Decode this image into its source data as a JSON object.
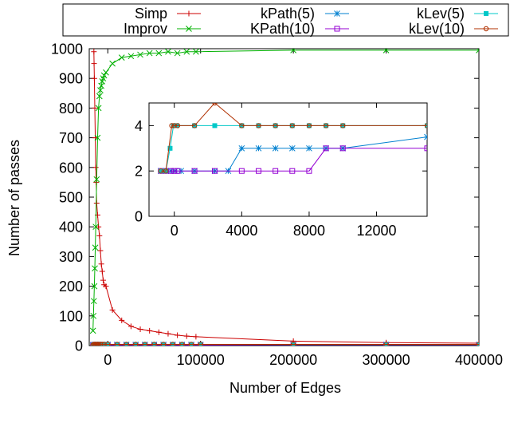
{
  "chart_data": [
    {
      "type": "line",
      "xlabel": "Number of Edges",
      "ylabel": "Number of passes",
      "xlim": [
        -20000,
        400000
      ],
      "ylim": [
        0,
        1000
      ],
      "x_ticks": [
        0,
        100000,
        200000,
        300000,
        400000
      ],
      "x_tick_labels": [
        "0",
        "100000",
        "200000",
        "300000",
        "400000"
      ],
      "y_ticks": [
        0,
        100,
        200,
        300,
        400,
        500,
        600,
        700,
        800,
        900,
        1000
      ],
      "y_tick_labels": [
        "0",
        "100",
        "200",
        "300",
        "400",
        "500",
        "600",
        "700",
        "800",
        "900",
        "1000"
      ],
      "legend_position": "top, outside plot",
      "series": [
        {
          "name": "Simp",
          "color": "#cc0000",
          "marker": "plus",
          "x": [
            -15000,
            -14800,
            -14500,
            -14000,
            -13500,
            -13000,
            -12500,
            -12000,
            -11000,
            -10000,
            -9000,
            -8000,
            -7000,
            -6000,
            -5000,
            -4000,
            -2000,
            5000,
            15000,
            25000,
            35000,
            45000,
            55000,
            65000,
            75000,
            85000,
            95000,
            200000,
            300000,
            400000
          ],
          "y": [
            990,
            950,
            900,
            800,
            700,
            600,
            550,
            480,
            440,
            400,
            370,
            320,
            275,
            250,
            220,
            205,
            200,
            120,
            85,
            65,
            55,
            50,
            45,
            40,
            35,
            32,
            30,
            15,
            10,
            8
          ]
        },
        {
          "name": "Improv",
          "color": "#00b000",
          "marker": "cross",
          "x": [
            -16000,
            -15500,
            -15000,
            -14500,
            -14000,
            -13500,
            -13000,
            -12000,
            -11000,
            -10000,
            -9000,
            -8000,
            -7000,
            -6000,
            -5000,
            -4000,
            -2000,
            5000,
            15000,
            25000,
            35000,
            45000,
            55000,
            65000,
            75000,
            85000,
            95000,
            200000,
            300000,
            400000
          ],
          "y": [
            50,
            100,
            150,
            200,
            260,
            330,
            400,
            560,
            700,
            800,
            840,
            860,
            875,
            890,
            900,
            910,
            920,
            950,
            970,
            975,
            980,
            985,
            985,
            990,
            985,
            990,
            990,
            995,
            995,
            995
          ]
        },
        {
          "name": "kPath(5)",
          "color": "#0080d0",
          "marker": "asterisk",
          "x": [
            -16000,
            -15000,
            -14000,
            -13000,
            -12000,
            -11000,
            -10000,
            -8000,
            -6000,
            -4000,
            0,
            10000,
            20000,
            30000,
            40000,
            50000,
            60000,
            70000,
            80000,
            90000,
            100000,
            200000,
            300000,
            400000
          ],
          "y": [
            2,
            2,
            3,
            3,
            3,
            3,
            3,
            3,
            3,
            3,
            3,
            3,
            3,
            3,
            3,
            3,
            3,
            3,
            3,
            3,
            3,
            3,
            3,
            3
          ]
        },
        {
          "name": "KPath(10)",
          "color": "#9400d3",
          "marker": "square-open",
          "x": [
            -16000,
            -15000,
            -14000,
            -13000,
            -12000,
            -11000,
            -10000,
            -8000,
            -6000,
            -4000,
            0,
            10000,
            20000,
            30000,
            40000,
            50000,
            60000,
            70000,
            80000,
            90000,
            100000,
            200000,
            300000,
            400000
          ],
          "y": [
            2,
            2,
            2,
            2,
            2,
            2,
            2,
            2,
            2,
            2,
            2,
            2,
            2,
            2,
            2,
            2,
            2,
            2,
            2,
            2,
            2,
            3,
            3,
            3
          ]
        },
        {
          "name": "kLev(5)",
          "color": "#00c8c8",
          "marker": "square-filled",
          "x": [
            -16000,
            -15000,
            -14000,
            -13000,
            -12000,
            -11000,
            -10000,
            -8000,
            -6000,
            -4000,
            0,
            10000,
            20000,
            30000,
            40000,
            50000,
            60000,
            70000,
            80000,
            90000,
            100000,
            200000,
            300000,
            400000
          ],
          "y": [
            2,
            3,
            4,
            4,
            4,
            4,
            4,
            4,
            4,
            4,
            4,
            4,
            4,
            4,
            4,
            4,
            4,
            4,
            4,
            4,
            4,
            4,
            4,
            4
          ]
        },
        {
          "name": "kLev(10)",
          "color": "#b03000",
          "marker": "circle-open",
          "x": [
            -16000,
            -15000,
            -14000,
            -13000,
            -12000,
            -11000,
            -10000,
            -8000,
            -6000,
            -4000,
            0,
            10000,
            20000,
            30000,
            40000,
            50000,
            60000,
            70000,
            80000,
            90000,
            100000,
            200000,
            300000,
            400000
          ],
          "y": [
            2,
            4,
            4,
            4,
            4,
            4,
            4,
            4,
            4,
            4,
            4,
            4,
            4,
            4,
            4,
            4,
            4,
            4,
            4,
            4,
            4,
            4,
            4,
            4
          ]
        }
      ]
    },
    {
      "type": "line",
      "xlabel": "",
      "ylabel": "",
      "xlim": [
        -1500,
        15000
      ],
      "ylim": [
        0,
        5
      ],
      "x_ticks": [
        0,
        4000,
        8000,
        12000
      ],
      "x_tick_labels": [
        "0",
        "4000",
        "8000",
        "12000"
      ],
      "y_ticks": [
        0,
        2,
        4
      ],
      "y_tick_labels": [
        "0",
        "2",
        "4"
      ],
      "series": [
        {
          "name": "kPath(5)",
          "color": "#0080d0",
          "marker": "asterisk",
          "x": [
            -800,
            -500,
            -200,
            50,
            400,
            1200,
            2400,
            3200,
            4000,
            5000,
            6000,
            7000,
            8000,
            9000,
            10000,
            15000
          ],
          "y": [
            2,
            2,
            2,
            2,
            2,
            2,
            2,
            2,
            3,
            3,
            3,
            3,
            3,
            3,
            3,
            3.5
          ]
        },
        {
          "name": "KPath(10)",
          "color": "#9400d3",
          "marker": "square-open",
          "x": [
            -800,
            -500,
            -200,
            0,
            200,
            1200,
            2400,
            4000,
            5000,
            6000,
            7000,
            8000,
            9000,
            10000,
            15000
          ],
          "y": [
            2,
            2,
            2,
            2,
            2,
            2,
            2,
            2,
            2,
            2,
            2,
            2,
            3,
            3,
            3
          ]
        },
        {
          "name": "kLev(5)",
          "color": "#00c8c8",
          "marker": "square-filled",
          "x": [
            -800,
            -500,
            -250,
            -50,
            150,
            1200,
            2400,
            4000,
            5000,
            6000,
            7000,
            8000,
            9000,
            10000,
            15000
          ],
          "y": [
            2,
            2,
            3,
            4,
            4,
            4,
            4,
            4,
            4,
            4,
            4,
            4,
            4,
            4,
            4
          ]
        },
        {
          "name": "kLev(10)",
          "color": "#b03000",
          "marker": "circle-open",
          "x": [
            -800,
            -500,
            -150,
            0,
            200,
            1200,
            2400,
            4000,
            5000,
            6000,
            7000,
            8000,
            9000,
            10000,
            15000
          ],
          "y": [
            2,
            2,
            4,
            4,
            4,
            4,
            5,
            4,
            4,
            4,
            4,
            4,
            4,
            4,
            4
          ]
        }
      ]
    }
  ]
}
